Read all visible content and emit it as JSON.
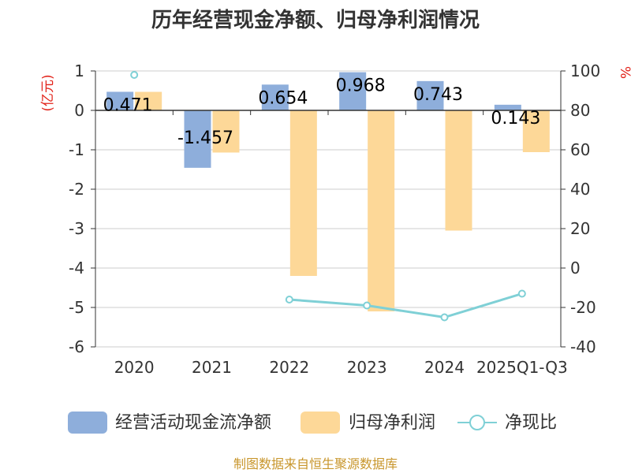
{
  "chart_data": {
    "type": "bar",
    "title": "历年经营现金净额、归母净利润情况",
    "categories": [
      "2020",
      "2021",
      "2022",
      "2023",
      "2024",
      "2025Q1-Q3"
    ],
    "y_left": {
      "unit": "(亿元)",
      "ylim": [
        -6,
        1
      ],
      "ticks": [
        "1",
        "0",
        "-1",
        "-2",
        "-3",
        "-4",
        "-5",
        "-6"
      ]
    },
    "y_right": {
      "unit": "%",
      "ylim": [
        -40,
        100
      ],
      "ticks": [
        "100",
        "80",
        "60",
        "40",
        "20",
        "0",
        "-20",
        "-40"
      ]
    },
    "series": [
      {
        "name": "经营活动现金流净额",
        "kind": "bar",
        "axis": "left",
        "color": "#8eaedb",
        "values": [
          0.471,
          -1.457,
          0.654,
          0.968,
          0.743,
          0.143
        ],
        "labels": [
          "0.471",
          "-1.457",
          "0.654",
          "0.968",
          "0.743",
          "0.143"
        ]
      },
      {
        "name": "归母净利润",
        "kind": "bar",
        "axis": "left",
        "color": "#fdd898",
        "values": [
          0.47,
          -1.07,
          -4.2,
          -5.1,
          -3.05,
          -1.06
        ]
      },
      {
        "name": "净现比",
        "kind": "line",
        "axis": "right",
        "color": "#7fd0d6",
        "values": [
          98,
          null,
          -16,
          -19,
          -25,
          -13
        ]
      }
    ],
    "grid": true,
    "legend": "bottom"
  },
  "source": "制图数据来自恒生聚源数据库"
}
